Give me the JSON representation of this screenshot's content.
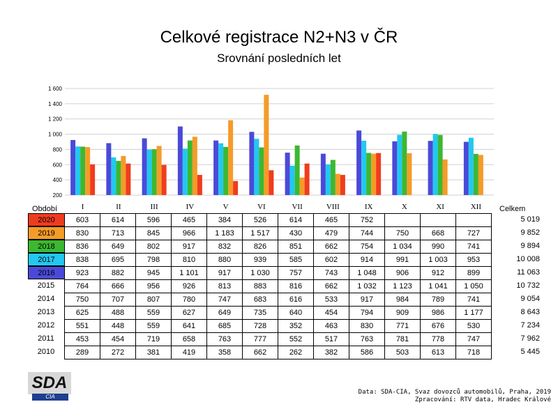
{
  "chart_data": {
    "type": "bar",
    "title": "Celkové registrace N2+N3 v ČR",
    "subtitle": "Srovnání posledních let",
    "categories": [
      "I",
      "II",
      "III",
      "IV",
      "V",
      "VI",
      "VII",
      "VIII",
      "IX",
      "X",
      "XI",
      "XII"
    ],
    "ylim": [
      200,
      1600
    ],
    "y_ticks": [
      {
        "value": 200,
        "label": "200"
      },
      {
        "value": 400,
        "label": "400"
      },
      {
        "value": 600,
        "label": "600"
      },
      {
        "value": 800,
        "label": "800"
      },
      {
        "value": 1000,
        "label": "1 000"
      },
      {
        "value": 1200,
        "label": "1 200"
      },
      {
        "value": 1400,
        "label": "1 400"
      },
      {
        "value": 1600,
        "label": "1 600"
      }
    ],
    "grid": true,
    "series": [
      {
        "name": "2016",
        "color": "#4a4ad8",
        "values": [
          923,
          882,
          945,
          1101,
          917,
          1030,
          757,
          743,
          1048,
          906,
          912,
          899
        ]
      },
      {
        "name": "2017",
        "color": "#22c8f0",
        "values": [
          838,
          695,
          798,
          810,
          880,
          939,
          585,
          602,
          914,
          991,
          1003,
          953
        ]
      },
      {
        "name": "2018",
        "color": "#3cb832",
        "values": [
          836,
          649,
          802,
          917,
          832,
          826,
          851,
          662,
          754,
          1034,
          990,
          741
        ]
      },
      {
        "name": "2019",
        "color": "#f59b28",
        "values": [
          830,
          713,
          845,
          966,
          1183,
          1517,
          430,
          479,
          744,
          750,
          668,
          727
        ]
      },
      {
        "name": "2020",
        "color": "#f03c1e",
        "values": [
          603,
          614,
          596,
          465,
          384,
          526,
          614,
          465,
          752,
          null,
          null,
          null
        ]
      }
    ]
  },
  "table": {
    "header_label": "Období",
    "total_label": "Celkem",
    "rows": [
      {
        "year": "2020",
        "color": "#f03c1e",
        "cells": [
          "603",
          "614",
          "596",
          "465",
          "384",
          "526",
          "614",
          "465",
          "752",
          "",
          "",
          ""
        ],
        "total": "5 019"
      },
      {
        "year": "2019",
        "color": "#f59b28",
        "cells": [
          "830",
          "713",
          "845",
          "966",
          "1 183",
          "1 517",
          "430",
          "479",
          "744",
          "750",
          "668",
          "727"
        ],
        "total": "9 852"
      },
      {
        "year": "2018",
        "color": "#3cb832",
        "cells": [
          "836",
          "649",
          "802",
          "917",
          "832",
          "826",
          "851",
          "662",
          "754",
          "1 034",
          "990",
          "741"
        ],
        "total": "9 894"
      },
      {
        "year": "2017",
        "color": "#22c8f0",
        "cells": [
          "838",
          "695",
          "798",
          "810",
          "880",
          "939",
          "585",
          "602",
          "914",
          "991",
          "1 003",
          "953"
        ],
        "total": "10 008"
      },
      {
        "year": "2016",
        "color": "#4a4ad8",
        "cells": [
          "923",
          "882",
          "945",
          "1 101",
          "917",
          "1 030",
          "757",
          "743",
          "1 048",
          "906",
          "912",
          "899"
        ],
        "total": "11 063"
      },
      {
        "year": "2015",
        "color": "",
        "cells": [
          "764",
          "666",
          "956",
          "926",
          "813",
          "883",
          "816",
          "662",
          "1 032",
          "1 123",
          "1 041",
          "1 050"
        ],
        "total": "10 732"
      },
      {
        "year": "2014",
        "color": "",
        "cells": [
          "750",
          "707",
          "807",
          "780",
          "747",
          "683",
          "616",
          "533",
          "917",
          "984",
          "789",
          "741"
        ],
        "total": "9 054"
      },
      {
        "year": "2013",
        "color": "",
        "cells": [
          "625",
          "488",
          "559",
          "627",
          "649",
          "735",
          "640",
          "454",
          "794",
          "909",
          "986",
          "1 177"
        ],
        "total": "8 643"
      },
      {
        "year": "2012",
        "color": "",
        "cells": [
          "551",
          "448",
          "559",
          "641",
          "685",
          "728",
          "352",
          "463",
          "830",
          "771",
          "676",
          "530"
        ],
        "total": "7 234"
      },
      {
        "year": "2011",
        "color": "",
        "cells": [
          "453",
          "454",
          "719",
          "658",
          "763",
          "777",
          "552",
          "517",
          "763",
          "781",
          "778",
          "747"
        ],
        "total": "7 962"
      },
      {
        "year": "2010",
        "color": "",
        "cells": [
          "289",
          "272",
          "381",
          "419",
          "358",
          "662",
          "262",
          "382",
          "586",
          "503",
          "613",
          "718"
        ],
        "total": "5 445"
      }
    ]
  },
  "logo": {
    "main": "SDA",
    "sub": "CIA"
  },
  "source": {
    "line1": "Data: SDA-CIA, Svaz dovozců automobilů, Praha, 2019",
    "line2": "Zpracování: RTV data, Hradec Králové"
  }
}
